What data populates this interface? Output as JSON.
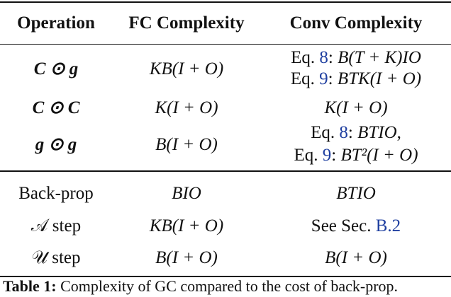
{
  "table": {
    "header": [
      "Operation",
      "FC Complexity",
      "Conv Complexity"
    ],
    "rows": [
      {
        "operation": "C ⊙ g",
        "fc": "KB(I + O)",
        "conv": [
          [
            "Eq. ",
            "8",
            ": ",
            "B(T + K)IO"
          ],
          [
            "Eq. ",
            "9",
            ": ",
            "BTK(I + O)"
          ]
        ]
      },
      {
        "operation": "C ⊙ C",
        "fc": "K(I + O)",
        "conv": "K(I + O)"
      },
      {
        "operation": "g ⊙ g",
        "fc": "B(I + O)",
        "conv": [
          [
            "Eq. ",
            "8",
            ": ",
            "BTIO",
            ","
          ],
          [
            "Eq. ",
            "9",
            ": ",
            "BT²(I + O)"
          ]
        ]
      },
      {
        "operation": "Back-prop",
        "fc": "BIO",
        "conv": "BTIO"
      },
      {
        "operation": "𝒜 step",
        "fc": "KB(I + O)",
        "conv": [
          "See Sec. ",
          "B.2"
        ]
      },
      {
        "operation": "𝒰 step",
        "fc": "B(I + O)",
        "conv": "B(I + O)"
      }
    ]
  },
  "caption": {
    "label": "Table 1:",
    "text": "Complexity of GC compared to the cost of back-prop."
  }
}
